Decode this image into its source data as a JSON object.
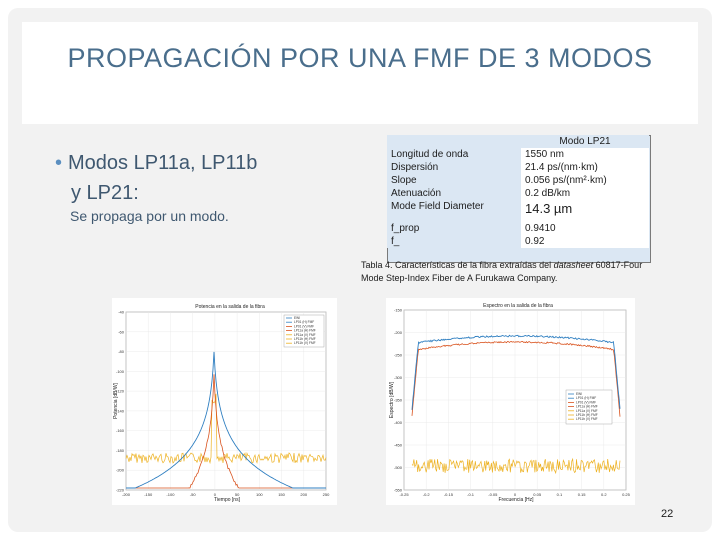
{
  "title": "PROPAGACIÓN POR UNA FMF DE 3 MODOS",
  "bullet": {
    "line1": "Modos LP11a, LP11b",
    "line2": "y LP21:"
  },
  "subtext": "Se propaga por un modo.",
  "table": {
    "header": "Modo LP21",
    "rows": [
      {
        "label": "Longitud de onda",
        "value": "1550 nm"
      },
      {
        "label": "Dispersión",
        "value": "21.4 ps/(nm·km)"
      },
      {
        "label": "Slope",
        "value": "0.056 ps/(nm²·km)"
      },
      {
        "label": "Atenuación",
        "value": "0.2 dB/km"
      },
      {
        "label": "Mode Field Diameter",
        "value": "14.3 µm"
      },
      {
        "label": "f_prop",
        "value": "0.9410"
      },
      {
        "label": "f_",
        "value": "0.92"
      }
    ]
  },
  "caption": {
    "prefix": "Tabla 4. Características de la fibra extraídas del ",
    "italic": "datasheet",
    "suffix": " 60817-Four Mode Step-Index Fiber de A Furukawa Company."
  },
  "chart_left": {
    "type": "line",
    "title": "Potencia en la salida de la fibra",
    "xlabel": "Tiempo [ns]",
    "ylabel": "Potencia [dB/W]",
    "xticks": [
      "-200",
      "-150",
      "-100",
      "-50",
      "0",
      "50",
      "100",
      "150",
      "200",
      "250"
    ],
    "yticks": [
      "-40",
      "-60",
      "-80",
      "-100",
      "-120",
      "-140",
      "-160",
      "-180",
      "-200",
      "-220"
    ],
    "legend": [
      "EWI",
      "LP01 (H) FMF",
      "LP01 (V) FMF",
      "LP11a (H) FMF",
      "LP11a (V) FMF",
      "LP11b (H) FMF",
      "LP11b (V) FMF"
    ],
    "colors": [
      "#2f7fc1",
      "#d9531e",
      "#edb120"
    ]
  },
  "chart_right": {
    "type": "line",
    "title": "Espectro en la salida de la fibra",
    "xlabel": "Frecuencia [Hz]",
    "ylabel": "Espectro [dB/W]",
    "xticks": [
      "-0.25",
      "-0.2",
      "-0.15",
      "-0.1",
      "-0.05",
      "0",
      "0.05",
      "0.1",
      "0.15",
      "0.2",
      "0.25"
    ],
    "yticks": [
      "-150",
      "-200",
      "-250",
      "-300",
      "-350",
      "-400",
      "-450",
      "-500",
      "-550"
    ],
    "legend": [
      "EWI",
      "LP01 (H) FMF",
      "LP01 (V) FMF",
      "LP11a (H) FMF",
      "LP11a (V) FMF",
      "LP11b (H) FMF",
      "LP11b (V) FMF"
    ],
    "colors": [
      "#2f7fc1",
      "#d9531e",
      "#edb120"
    ]
  },
  "page_number": "22"
}
